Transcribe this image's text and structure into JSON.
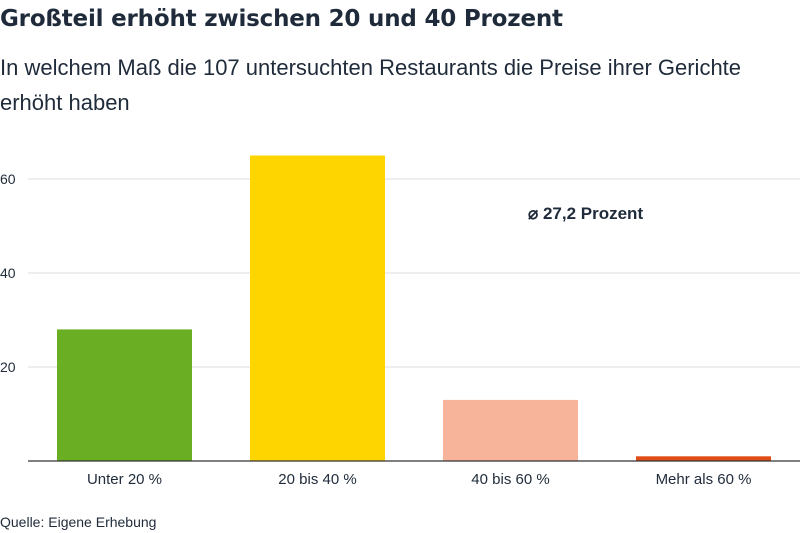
{
  "title": "Großteil erhöht zwischen 20 und 40 Prozent",
  "subtitle": "In welchem Maß die 107 untersuchten Restaurants die Preise ihrer Gerichte erhöht haben",
  "source": "Quelle: Eigene Erhebung",
  "annotation": "⌀ 27,2 Prozent",
  "chart_data": {
    "type": "bar",
    "categories": [
      "Unter 20 %",
      "20 bis 40 %",
      "40 bis 60 %",
      "Mehr als 60 %"
    ],
    "values": [
      28,
      65,
      13,
      1
    ],
    "colors": [
      "#6aaf23",
      "#ffd500",
      "#f7b49a",
      "#e04e17"
    ],
    "ylim": [
      0,
      70
    ],
    "yticks": [
      20,
      40,
      60
    ],
    "grid": true,
    "title": "Großteil erhöht zwischen 20 und 40 Prozent",
    "xlabel": "",
    "ylabel": ""
  }
}
